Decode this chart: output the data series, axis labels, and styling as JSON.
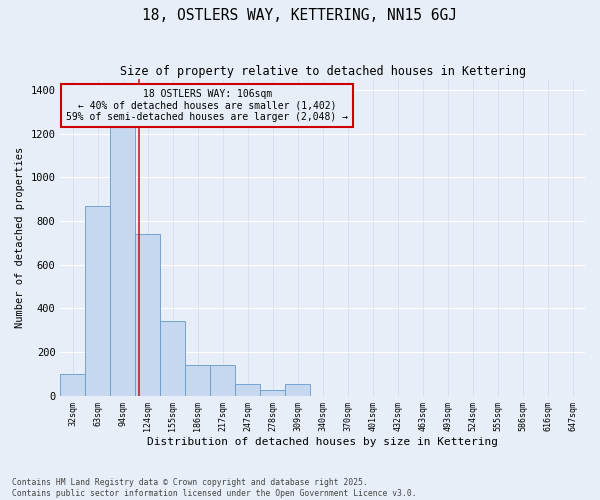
{
  "title": "18, OSTLERS WAY, KETTERING, NN15 6GJ",
  "subtitle": "Size of property relative to detached houses in Kettering",
  "xlabel": "Distribution of detached houses by size in Kettering",
  "ylabel": "Number of detached properties",
  "bar_labels": [
    "32sqm",
    "63sqm",
    "94sqm",
    "124sqm",
    "155sqm",
    "186sqm",
    "217sqm",
    "247sqm",
    "278sqm",
    "309sqm",
    "340sqm",
    "370sqm",
    "401sqm",
    "432sqm",
    "463sqm",
    "493sqm",
    "524sqm",
    "555sqm",
    "586sqm",
    "616sqm",
    "647sqm"
  ],
  "bar_values": [
    100,
    870,
    1240,
    740,
    340,
    140,
    140,
    55,
    25,
    55,
    0,
    0,
    0,
    0,
    0,
    0,
    0,
    0,
    0,
    0,
    0
  ],
  "bar_color": "#c5d8f0",
  "bar_edge_color": "#6699cc",
  "vline_x": 2.63,
  "vline_color": "#bb2222",
  "annotation_text": "18 OSTLERS WAY: 106sqm\n← 40% of detached houses are smaller (1,402)\n59% of semi-detached houses are larger (2,048) →",
  "annotation_box_color": "#cc0000",
  "annotation_text_color": "#000000",
  "ylim": [
    0,
    1450
  ],
  "yticks": [
    0,
    200,
    400,
    600,
    800,
    1000,
    1200,
    1400
  ],
  "background_color": "#e8eef8",
  "grid_color": "#d0d8e8",
  "footer": "Contains HM Land Registry data © Crown copyright and database right 2025.\nContains public sector information licensed under the Open Government Licence v3.0."
}
